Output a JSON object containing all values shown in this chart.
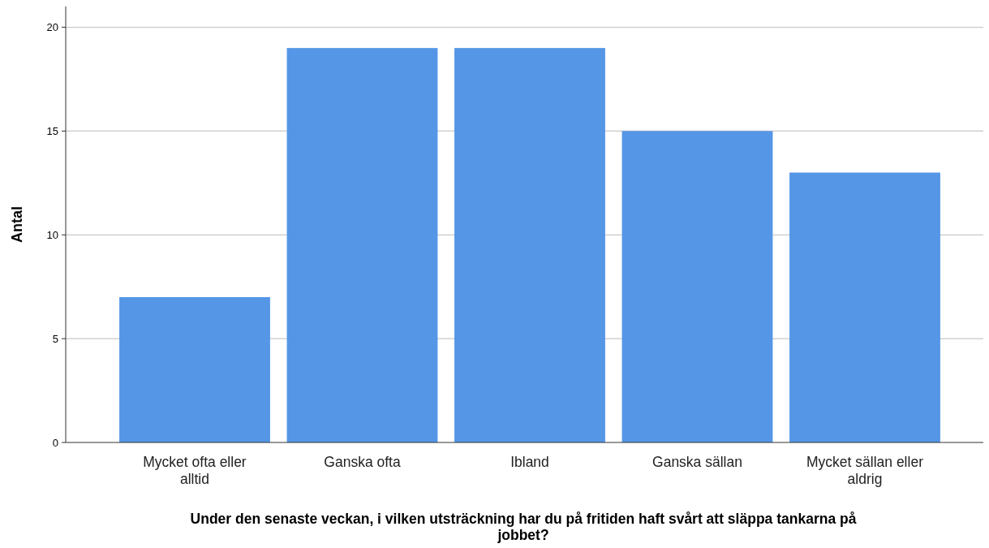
{
  "chart_data": {
    "type": "bar",
    "xlabel": "Under den senaste veckan, i vilken utsträckning har du på fritiden haft svårt att släppa tankarna på jobbet?",
    "ylabel": "Antal",
    "categories": [
      "Mycket ofta eller alltid",
      "Ganska ofta",
      "Ibland",
      "Ganska sällan",
      "Mycket sällan eller aldrig"
    ],
    "values": [
      7,
      19,
      19,
      15,
      13
    ],
    "color": "#5596e6",
    "ylim": [
      0,
      21
    ],
    "yticks": [
      0,
      5,
      10,
      15,
      20
    ],
    "grid": "y"
  }
}
